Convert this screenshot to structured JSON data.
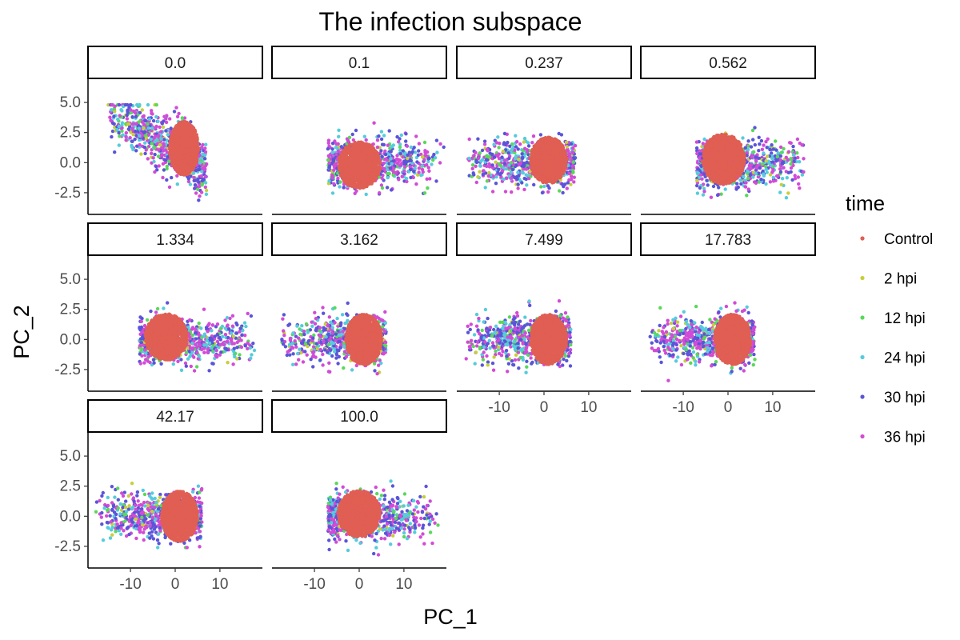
{
  "chart_data": {
    "type": "scatter",
    "title": "The infection subspace",
    "xlabel": "PC_1",
    "ylabel": "PC_2",
    "xlim": [
      -19.5,
      19.5
    ],
    "ylim": [
      -4.3,
      7.0
    ],
    "x_ticks": [
      -10,
      0,
      10
    ],
    "x_tick_labels": [
      "-10",
      "0",
      "10"
    ],
    "y_ticks": [
      -2.5,
      0,
      2.5,
      5
    ],
    "y_tick_labels": [
      "-2.5",
      "0.0",
      "2.5",
      "5.0"
    ],
    "grid": false,
    "legend": {
      "title": "time",
      "position": "right",
      "entries": [
        "Control",
        "2 hpi",
        "12 hpi",
        "24 hpi",
        "30 hpi",
        "36 hpi"
      ]
    },
    "colors": {
      "Control": "#e05e53",
      "2 hpi": "#c7cf3a",
      "12 hpi": "#59d85a",
      "24 hpi": "#55ccdd",
      "30 hpi": "#5a55d8",
      "36 hpi": "#d24bd6"
    },
    "facets": [
      {
        "label": "0.0",
        "control": {
          "center": [
            2,
            1.2
          ],
          "spread": [
            2.4,
            1.4
          ],
          "x_range": [
            -4.5,
            7
          ],
          "y_range": [
            -2.5,
            3.6
          ]
        },
        "infected": {
          "x_range": [
            -15,
            7
          ],
          "y_range": [
            -3.2,
            4.8
          ],
          "trend": "upper-left"
        }
      },
      {
        "label": "0.1",
        "control": {
          "center": [
            0,
            -0.2
          ],
          "spread": [
            3.5,
            1.2
          ],
          "x_range": [
            -7,
            5
          ],
          "y_range": [
            -3,
            2.5
          ]
        },
        "infected": {
          "x_range": [
            -7,
            19
          ],
          "y_range": [
            -3.3,
            3.3
          ],
          "trend": "right"
        }
      },
      {
        "label": "0.237",
        "control": {
          "center": [
            1,
            0.2
          ],
          "spread": [
            3,
            1.2
          ],
          "x_range": [
            -5,
            7
          ],
          "y_range": [
            -2.5,
            3.2
          ]
        },
        "infected": {
          "x_range": [
            -18,
            7
          ],
          "y_range": [
            -2.5,
            3.2
          ],
          "trend": "left"
        }
      },
      {
        "label": "0.562",
        "control": {
          "center": [
            -1,
            0.3
          ],
          "spread": [
            3.5,
            1.3
          ],
          "x_range": [
            -7,
            5
          ],
          "y_range": [
            -2.6,
            3.2
          ]
        },
        "infected": {
          "x_range": [
            -7,
            18
          ],
          "y_range": [
            -3,
            3.5
          ],
          "trend": "right"
        }
      },
      {
        "label": "1.334",
        "control": {
          "center": [
            -2,
            0.2
          ],
          "spread": [
            3.5,
            1.2
          ],
          "x_range": [
            -8,
            4
          ],
          "y_range": [
            -2.5,
            2.8
          ]
        },
        "infected": {
          "x_range": [
            -8,
            18
          ],
          "y_range": [
            -2.7,
            3.4
          ],
          "trend": "right"
        }
      },
      {
        "label": "3.162",
        "control": {
          "center": [
            1,
            0
          ],
          "spread": [
            3,
            1.3
          ],
          "x_range": [
            -5,
            6
          ],
          "y_range": [
            -2.6,
            3
          ]
        },
        "infected": {
          "x_range": [
            -18,
            6
          ],
          "y_range": [
            -3.8,
            3.3
          ],
          "trend": "left"
        }
      },
      {
        "label": "7.499",
        "control": {
          "center": [
            1,
            0
          ],
          "spread": [
            3,
            1.3
          ],
          "x_range": [
            -5,
            6
          ],
          "y_range": [
            -2.6,
            2.8
          ]
        },
        "infected": {
          "x_range": [
            -18,
            6
          ],
          "y_range": [
            -3.7,
            3.2
          ],
          "trend": "left"
        }
      },
      {
        "label": "17.783",
        "control": {
          "center": [
            1,
            0
          ],
          "spread": [
            3,
            1.3
          ],
          "x_range": [
            -5,
            6
          ],
          "y_range": [
            -2.6,
            3
          ]
        },
        "infected": {
          "x_range": [
            -18,
            6
          ],
          "y_range": [
            -3.5,
            3.4
          ],
          "trend": "left"
        }
      },
      {
        "label": "42.17",
        "control": {
          "center": [
            1,
            0
          ],
          "spread": [
            3,
            1.3
          ],
          "x_range": [
            -5,
            6
          ],
          "y_range": [
            -2.8,
            3
          ]
        },
        "infected": {
          "x_range": [
            -18,
            6
          ],
          "y_range": [
            -2.6,
            4
          ],
          "trend": "left"
        }
      },
      {
        "label": "100.0",
        "control": {
          "center": [
            0,
            0.2
          ],
          "spread": [
            3.5,
            1.2
          ],
          "x_range": [
            -7,
            5
          ],
          "y_range": [
            -3,
            3.5
          ]
        },
        "infected": {
          "x_range": [
            -7,
            18
          ],
          "y_range": [
            -3.2,
            3.7
          ],
          "trend": "right"
        }
      }
    ]
  }
}
